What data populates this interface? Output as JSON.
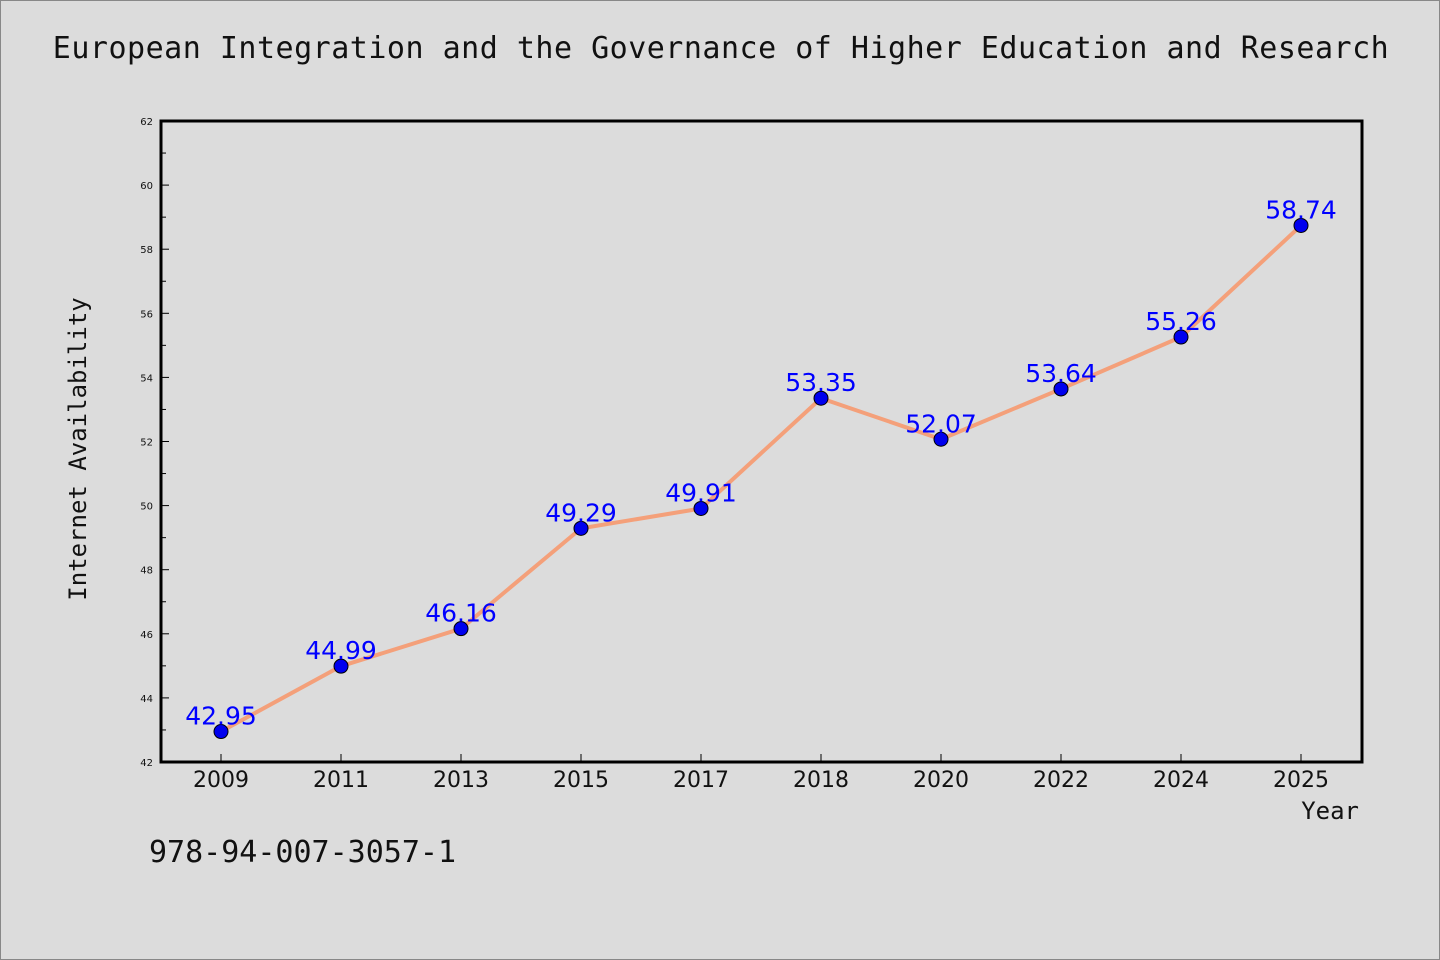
{
  "chart_data": {
    "type": "line",
    "title": "European Integration and the Governance of Higher Education and Research",
    "xlabel": "Year",
    "ylabel": "Internet Availability",
    "categories": [
      "2009",
      "2011",
      "2013",
      "2015",
      "2017",
      "2018",
      "2020",
      "2022",
      "2024",
      "2025"
    ],
    "series": [
      {
        "values": [
          42.95,
          44.99,
          46.16,
          49.29,
          49.91,
          53.35,
          52.07,
          53.64,
          55.26,
          58.74
        ],
        "line_color": "#f4a07a",
        "marker_color": "#0000ee"
      }
    ],
    "data_labels": [
      "42.95",
      "44.99",
      "46.16",
      "49.29",
      "49.91",
      "53.35",
      "52.07",
      "53.64",
      "55.26",
      "58.74"
    ],
    "ylim": [
      42,
      62
    ],
    "yticks": [
      "42",
      "44",
      "46",
      "48",
      "50",
      "52",
      "54",
      "56",
      "58",
      "60",
      "62"
    ],
    "grid": false,
    "label_color": "#0000ff"
  },
  "footer": {
    "isbn": "978-94-007-3057-1"
  }
}
